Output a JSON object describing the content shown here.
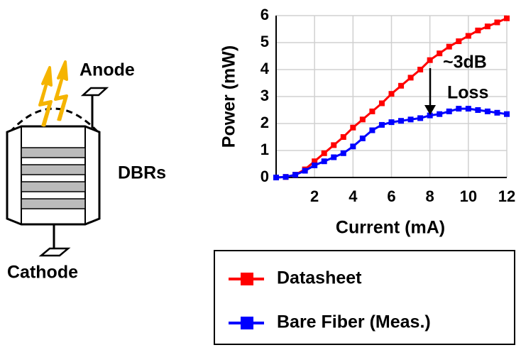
{
  "diagram": {
    "labels": [
      "Anode",
      "DBRs",
      "Cathode"
    ]
  },
  "chart_data": {
    "type": "line",
    "x_label": "Current (mA)",
    "y_label": "Power (mW)",
    "annotations": [
      "~3dB",
      "Loss"
    ],
    "x": [
      0,
      0.5,
      1,
      1.5,
      2,
      2.5,
      3,
      3.5,
      4,
      4.5,
      5,
      5.5,
      6,
      6.5,
      7,
      7.5,
      8,
      8.5,
      9,
      9.5,
      10,
      10.5,
      11,
      11.5,
      12
    ],
    "series": [
      {
        "name": "Datasheet",
        "color": "#ff0000",
        "values": [
          0,
          0.02,
          0.1,
          0.3,
          0.6,
          0.9,
          1.2,
          1.5,
          1.85,
          2.15,
          2.45,
          2.75,
          3.1,
          3.4,
          3.7,
          4.0,
          4.35,
          4.6,
          4.85,
          5.05,
          5.25,
          5.45,
          5.6,
          5.75,
          5.9
        ]
      },
      {
        "name": "Bare Fiber (Meas.)",
        "color": "#0000ff",
        "values": [
          0,
          0.02,
          0.1,
          0.25,
          0.45,
          0.6,
          0.75,
          0.9,
          1.15,
          1.45,
          1.75,
          1.95,
          2.05,
          2.1,
          2.15,
          2.2,
          2.3,
          2.35,
          2.45,
          2.55,
          2.55,
          2.5,
          2.45,
          2.4,
          2.35
        ]
      }
    ],
    "xlim": [
      0,
      12
    ],
    "xticks": [
      2,
      4,
      6,
      8,
      10,
      12
    ],
    "ylim": [
      0,
      6
    ],
    "yticks": [
      0,
      1,
      2,
      3,
      4,
      5,
      6
    ],
    "grid": true,
    "legend": "below"
  }
}
